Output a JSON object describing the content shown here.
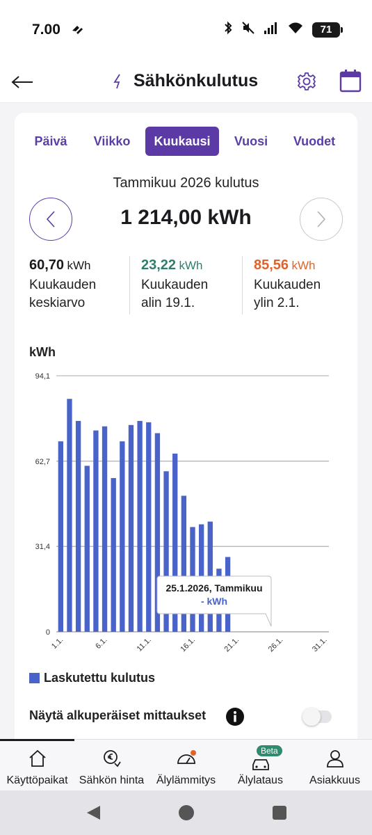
{
  "status_bar": {
    "time": "7.00",
    "battery": "71"
  },
  "header": {
    "title": "Sähkönkulutus"
  },
  "tabs": [
    {
      "label": "Päivä",
      "active": false
    },
    {
      "label": "Viikko",
      "active": false
    },
    {
      "label": "Kuukausi",
      "active": true
    },
    {
      "label": "Vuosi",
      "active": false
    },
    {
      "label": "Vuodet",
      "active": false
    }
  ],
  "summary": {
    "period_label": "Tammikuu 2026 kulutus",
    "total": "1 214,00 kWh",
    "stats": [
      {
        "value": "60,70",
        "unit": "kWh",
        "line1": "Kuukauden",
        "line2": "keskiarvo",
        "color": "#1b1b1f"
      },
      {
        "value": "23,22",
        "unit": "kWh",
        "line1": "Kuukauden",
        "line2": "alin 19.1.",
        "color": "#2f7d6b"
      },
      {
        "value": "85,56",
        "unit": "kWh",
        "line1": "Kuukauden",
        "line2": "ylin 2.1.",
        "color": "#e2622a"
      }
    ]
  },
  "chart_data": {
    "type": "bar",
    "ylabel": "kWh",
    "ylim": [
      0,
      94.1
    ],
    "yticks": [
      "0",
      "31,4",
      "62,7",
      "94,1"
    ],
    "ytick_values": [
      0,
      31.4,
      62.7,
      94.1
    ],
    "xtick_labels": [
      "1.1.",
      "6.1.",
      "11.1.",
      "16.1.",
      "21.1.",
      "26.1.",
      "31.1."
    ],
    "xtick_days": [
      1,
      6,
      11,
      16,
      21,
      26,
      31
    ],
    "days": 31,
    "series": [
      {
        "name": "Laskutettu kulutus",
        "color": "#4a63c8",
        "values": [
          70,
          85.6,
          77.5,
          61,
          74,
          75.5,
          56.5,
          70,
          76,
          77.5,
          77,
          73,
          59,
          65.5,
          50,
          38.5,
          39.5,
          40.5,
          23.2,
          27.5
        ]
      }
    ],
    "grid": true,
    "tooltip": {
      "line1": "25.1.2026, Tammikuu",
      "line2": "- kWh"
    }
  },
  "legend": {
    "label": "Laskutettu kulutus",
    "color": "#4a63c8"
  },
  "toggle": {
    "label": "Näytä alkuperäiset mittaukset",
    "on": false
  },
  "bottom_nav": {
    "items": [
      {
        "label": "Käyttöpaikat",
        "icon": "home-icon"
      },
      {
        "label": "Sähkön hinta",
        "icon": "price-icon"
      },
      {
        "label": "Älylämmitys",
        "icon": "gauge-icon"
      },
      {
        "label": "Älylataus",
        "icon": "car-icon"
      },
      {
        "label": "Asiakkuus",
        "icon": "person-icon"
      }
    ],
    "beta_badge": "Beta"
  }
}
